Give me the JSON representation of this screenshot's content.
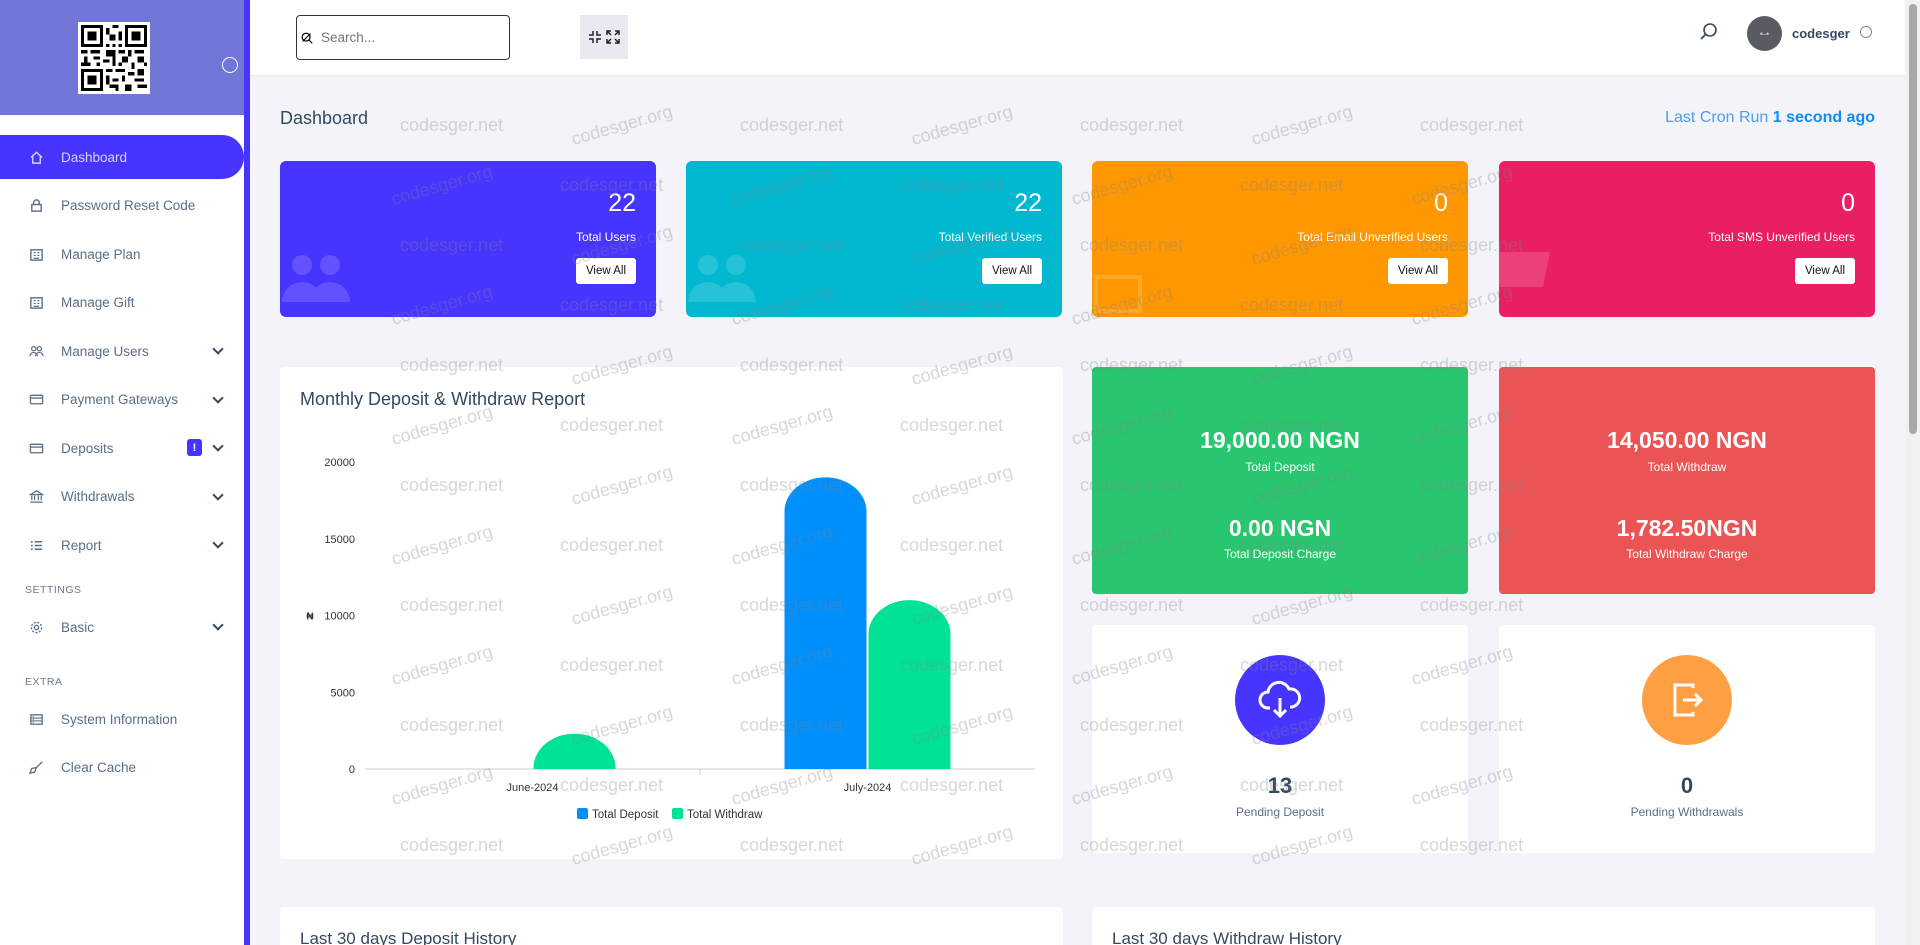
{
  "sidebar": {
    "items": [
      {
        "label": "Dashboard",
        "icon": "home-icon",
        "active": true
      },
      {
        "label": "Password Reset Code",
        "icon": "lock-icon"
      },
      {
        "label": "Manage Plan",
        "icon": "building-icon"
      },
      {
        "label": "Manage Gift",
        "icon": "building-icon"
      },
      {
        "label": "Manage Users",
        "icon": "users-icon",
        "has_chevron": true
      },
      {
        "label": "Payment Gateways",
        "icon": "credit-card-icon",
        "has_chevron": true
      },
      {
        "label": "Deposits",
        "icon": "credit-card-icon",
        "has_chevron": true,
        "badge": "!"
      },
      {
        "label": "Withdrawals",
        "icon": "bank-icon",
        "has_chevron": true
      },
      {
        "label": "Report",
        "icon": "list-icon",
        "has_chevron": true
      }
    ],
    "settings_title": "SETTINGS",
    "settings_items": [
      {
        "label": "Basic",
        "icon": "gear-icon",
        "has_chevron": true
      }
    ],
    "extra_title": "EXTRA",
    "extra_items": [
      {
        "label": "System Information",
        "icon": "server-icon"
      },
      {
        "label": "Clear Cache",
        "icon": "broom-icon"
      }
    ]
  },
  "topbar": {
    "search_placeholder": "Search...",
    "username": "codesger",
    "avatar_text": "•-•"
  },
  "header": {
    "title": "Dashboard",
    "cron_label": "Last Cron Run",
    "cron_value": "1 second ago"
  },
  "cards": [
    {
      "value": "22",
      "label": "Total Users",
      "button": "View All",
      "color": "#4634ff"
    },
    {
      "value": "22",
      "label": "Total Verified Users",
      "button": "View All",
      "color": "#00b8d0"
    },
    {
      "value": "0",
      "label": "Total Email Unverified Users",
      "button": "View All",
      "color": "#ff9800"
    },
    {
      "value": "0",
      "label": "Total SMS Unverified Users",
      "button": "View All",
      "color": "#e91e63"
    }
  ],
  "stats": {
    "deposit": {
      "value": "19,000.00 NGN",
      "label": "Total Deposit",
      "charge_value": "0.00 NGN",
      "charge_label": "Total Deposit Charge",
      "color": "#28c76f"
    },
    "withdraw": {
      "value": "14,050.00 NGN",
      "label": "Total Withdraw",
      "charge_value": "1,782.50NGN",
      "charge_label": "Total Withdraw Charge",
      "color": "#ea5455"
    }
  },
  "pending": {
    "deposit": {
      "value": "13",
      "label": "Pending Deposit",
      "color": "#4634ff"
    },
    "withdraw": {
      "value": "0",
      "label": "Pending Withdrawals",
      "color": "#ff9f43"
    }
  },
  "history": {
    "deposit_title": "Last 30 days Deposit History",
    "withdraw_title": "Last 30 days Withdraw History"
  },
  "watermark": {
    "net": "codesger.net",
    "org": "codesger.org"
  },
  "chart_data": {
    "type": "bar",
    "title": "Monthly Deposit & Withdraw Report",
    "ylabel": "₦",
    "categories": [
      "June-2024",
      "July-2024"
    ],
    "series": [
      {
        "name": "Total Deposit",
        "values": [
          0,
          19000
        ],
        "color": "#008ffb"
      },
      {
        "name": "Total Withdraw",
        "values": [
          2300,
          11000
        ],
        "color": "#00e396"
      }
    ],
    "yticks": [
      0,
      5000,
      10000,
      15000,
      20000
    ],
    "ylim": [
      0,
      20000
    ],
    "legend": "bottom-center"
  }
}
